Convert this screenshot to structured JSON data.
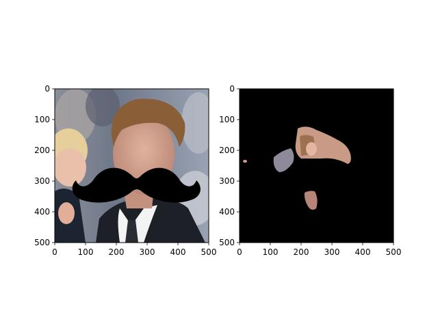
{
  "figure": {
    "background": "#ffffff"
  },
  "chart_data": [
    {
      "type": "image",
      "title": "",
      "xlabel": "",
      "ylabel": "",
      "xlim": [
        0,
        500
      ],
      "ylim": [
        500,
        0
      ],
      "xticks": [
        0,
        100,
        200,
        300,
        400,
        500
      ],
      "yticks": [
        0,
        100,
        200,
        300,
        400,
        500
      ],
      "content": "photo of man in suit with child, black mustache overlay",
      "overlay_color": "#000000"
    },
    {
      "type": "image",
      "title": "",
      "xlabel": "",
      "ylabel": "",
      "xlim": [
        0,
        500
      ],
      "ylim": [
        500,
        0
      ],
      "xticks": [
        0,
        100,
        200,
        300,
        400,
        500
      ],
      "yticks": [
        0,
        100,
        200,
        300,
        400,
        500
      ],
      "content": "masked image: black background with visible skin regions",
      "background_color": "#000000"
    }
  ]
}
